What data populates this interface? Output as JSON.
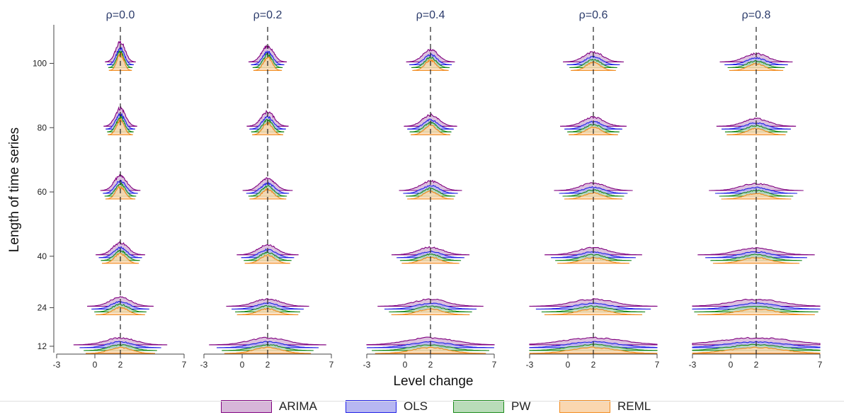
{
  "chart_data": {
    "type": "ridgeline-density",
    "ylabel": "Length of time series",
    "xlabel": "Level change",
    "panels": [
      "ρ=0.0",
      "ρ=0.2",
      "ρ=0.4",
      "ρ=0.6",
      "ρ=0.8"
    ],
    "rho": [
      0.0,
      0.2,
      0.4,
      0.6,
      0.8
    ],
    "x_ticks": [
      "-3",
      "0",
      "2",
      "7"
    ],
    "x_tick_values": [
      -3,
      0,
      2,
      7
    ],
    "xlim": [
      -3,
      7
    ],
    "reference_line_x": 2,
    "y_ticks": [
      "100",
      "80",
      "60",
      "40",
      "24",
      "12"
    ],
    "y_tick_values": [
      100,
      80,
      60,
      40,
      24,
      12
    ],
    "ylim": [
      10,
      112
    ],
    "true_value": 2,
    "series": [
      {
        "name": "ARIMA",
        "stroke": "#800080",
        "fill": "#d7b6d9"
      },
      {
        "name": "OLS",
        "stroke": "#1f1fe6",
        "fill": "#b7b7f2"
      },
      {
        "name": "PW",
        "stroke": "#1a8a1a",
        "fill": "#b9dcb9"
      },
      {
        "name": "REML",
        "stroke": "#f28a1c",
        "fill": "#fad7b0"
      }
    ],
    "sd_by_length": {
      "100": 0.32,
      "80": 0.35,
      "60": 0.42,
      "40": 0.52,
      "24": 0.7,
      "12": 1.0
    },
    "sd_rho_factor": [
      1.0,
      1.25,
      1.6,
      2.0,
      2.4
    ],
    "legend_position": "bottom"
  }
}
